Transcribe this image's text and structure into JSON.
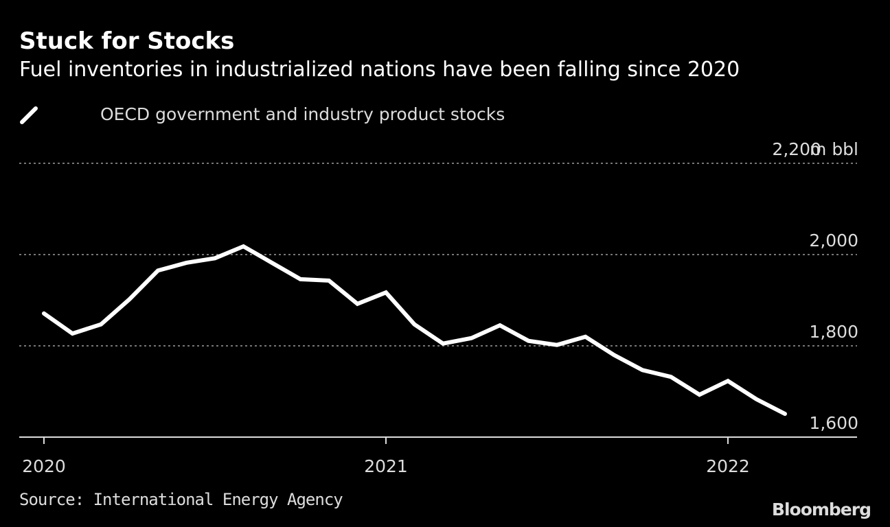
{
  "title": "Stuck for Stocks",
  "subtitle": "Fuel inventories in industrialized nations have been falling since 2020",
  "source": "Source: International Energy Agency",
  "logo": "Bloomberg",
  "chart_data": {
    "type": "line",
    "title": "Stuck for Stocks",
    "subtitle": "Fuel inventories in industrialized nations have been falling since 2020",
    "xlabel": "",
    "ylabel": "m bbl",
    "ylim": [
      1600,
      2200
    ],
    "y_ticks": [
      {
        "value": 2200,
        "label": "2,200"
      },
      {
        "value": 2000,
        "label": "2,000"
      },
      {
        "value": 1800,
        "label": "1,800"
      },
      {
        "value": 1600,
        "label": "1,600"
      }
    ],
    "y_unit_label": "m bbl",
    "x_ticks": [
      {
        "index": 0,
        "label": "2020"
      },
      {
        "index": 12,
        "label": "2021"
      },
      {
        "index": 24,
        "label": "2022"
      }
    ],
    "grid": true,
    "legend": "top-left",
    "series": [
      {
        "name": "OECD government and industry product stocks",
        "color": "#ffffff",
        "x": [
          "2020-01",
          "2020-02",
          "2020-03",
          "2020-04",
          "2020-05",
          "2020-06",
          "2020-07",
          "2020-08",
          "2020-09",
          "2020-10",
          "2020-11",
          "2020-12",
          "2021-01",
          "2021-02",
          "2021-03",
          "2021-04",
          "2021-05",
          "2021-06",
          "2021-07",
          "2021-08",
          "2021-09",
          "2021-10",
          "2021-11",
          "2021-12",
          "2022-01",
          "2022-02",
          "2022-03"
        ],
        "values": [
          1871,
          1827,
          1847,
          1902,
          1965,
          1982,
          1992,
          2018,
          1982,
          1946,
          1943,
          1892,
          1917,
          1847,
          1805,
          1817,
          1845,
          1811,
          1802,
          1820,
          1780,
          1747,
          1732,
          1693,
          1723,
          1683,
          1651
        ]
      }
    ]
  }
}
